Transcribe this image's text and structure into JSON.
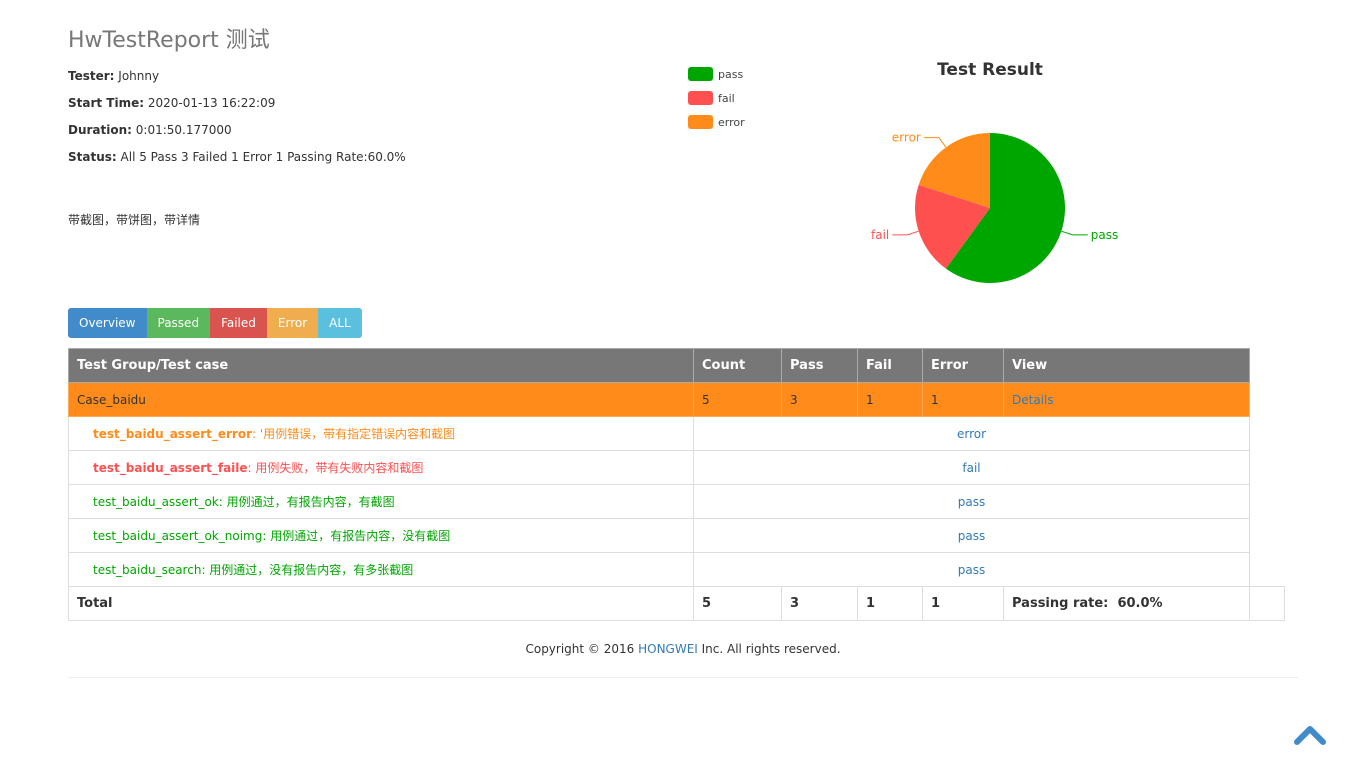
{
  "header": {
    "title": "HwTestReport 测试",
    "tester_label": "Tester:",
    "tester": "Johnny",
    "start_label": "Start Time:",
    "start": "2020-01-13 16:22:09",
    "duration_label": "Duration:",
    "duration": "0:01:50.177000",
    "status_label": "Status:",
    "status": "All 5 Pass 3 Failed 1 Error 1 Passing Rate:60.0%",
    "description": "带截图，带饼图，带详情"
  },
  "chart_data": {
    "type": "pie",
    "title": "Test Result",
    "labels": [
      "pass",
      "fail",
      "error"
    ],
    "values": [
      3,
      1,
      1
    ],
    "colors": [
      "#00a600",
      "#ff5050",
      "#ff8c1a"
    ],
    "legend_position": "top-left"
  },
  "filters": [
    {
      "label": "Overview",
      "color": "#428bca"
    },
    {
      "label": "Passed",
      "color": "#5cb85c"
    },
    {
      "label": "Failed",
      "color": "#d9534f"
    },
    {
      "label": "Error",
      "color": "#f0ad4e"
    },
    {
      "label": "ALL",
      "color": "#5bc0de"
    }
  ],
  "table": {
    "headers": [
      "Test Group/Test case",
      "Count",
      "Pass",
      "Fail",
      "Error",
      "View"
    ],
    "group": {
      "name": "Case_baidu",
      "count": "5",
      "pass": "3",
      "fail": "1",
      "error": "1",
      "view": "Details"
    },
    "cases": [
      {
        "name": "test_baidu_assert_error",
        "desc": ": '用例错误，带有指定错误内容和截图",
        "result": "error",
        "color": "#ff8c1a",
        "bold": true
      },
      {
        "name": "test_baidu_assert_faile",
        "desc": ": 用例失败，带有失败内容和截图",
        "result": "fail",
        "color": "#ff5050",
        "bold": true
      },
      {
        "name": "test_baidu_assert_ok",
        "desc": ": 用例通过，有报告内容，有截图",
        "result": "pass",
        "color": "#00a600",
        "bold": false
      },
      {
        "name": "test_baidu_assert_ok_noimg",
        "desc": ": 用例通过，有报告内容，没有截图",
        "result": "pass",
        "color": "#00a600",
        "bold": false
      },
      {
        "name": "test_baidu_search",
        "desc": ": 用例通过，没有报告内容，有多张截图",
        "result": "pass",
        "color": "#00a600",
        "bold": false
      }
    ],
    "total": {
      "label": "Total",
      "count": "5",
      "pass": "3",
      "fail": "1",
      "error": "1",
      "rate_label": "Passing rate:",
      "rate": "60.0%"
    }
  },
  "footer": {
    "prefix": "Copyright © 2016 ",
    "company": "HONGWEI",
    "suffix": " Inc. All rights reserved."
  },
  "icons": {
    "scroll_top": "chevron-up-icon"
  }
}
